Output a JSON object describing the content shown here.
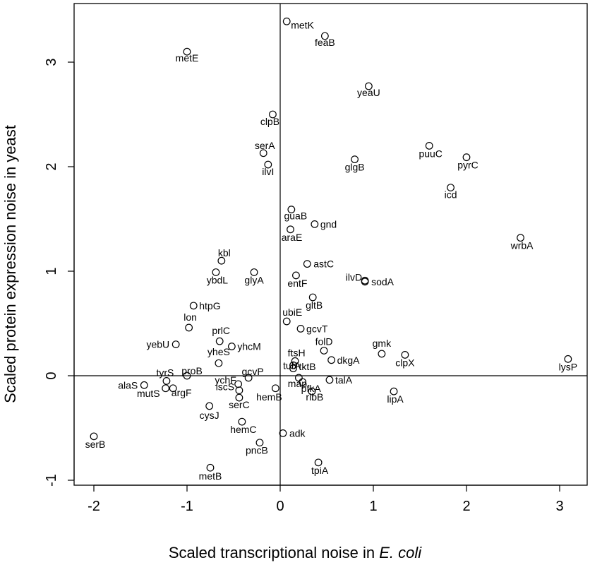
{
  "chart_data": {
    "type": "scatter",
    "xlabel": "Scaled transcriptional noise in ",
    "xlabel_italic": "E. coli",
    "ylabel": "Scaled protein expression noise in yeast",
    "xlim": [
      -2.1,
      3.15
    ],
    "ylim": [
      -1.1,
      3.5
    ],
    "x_ticks": [
      -2,
      -1,
      0,
      1,
      2,
      3
    ],
    "y_ticks": [
      -1,
      0,
      1,
      2,
      3
    ],
    "reference_lines": {
      "x": 0,
      "y": 0
    },
    "marker": "open-circle",
    "points": [
      {
        "label": "metK",
        "x": 0.07,
        "y": 3.39
      },
      {
        "label": "feaB",
        "x": 0.48,
        "y": 3.25
      },
      {
        "label": "metE",
        "x": -1.0,
        "y": 3.1
      },
      {
        "label": "yeaU",
        "x": 0.95,
        "y": 2.77
      },
      {
        "label": "clpB",
        "x": -0.08,
        "y": 2.5
      },
      {
        "label": "serA",
        "x": -0.18,
        "y": 2.13
      },
      {
        "label": "puuC",
        "x": 1.6,
        "y": 2.2
      },
      {
        "label": "pyrC",
        "x": 2.0,
        "y": 2.09
      },
      {
        "label": "glgB",
        "x": 0.8,
        "y": 2.07
      },
      {
        "label": "ilvI",
        "x": -0.13,
        "y": 2.02
      },
      {
        "label": "icd",
        "x": 1.83,
        "y": 1.8
      },
      {
        "label": "guaB",
        "x": 0.12,
        "y": 1.59
      },
      {
        "label": "gnd",
        "x": 0.37,
        "y": 1.45
      },
      {
        "label": "araE",
        "x": 0.11,
        "y": 1.4
      },
      {
        "label": "wrbA",
        "x": 2.58,
        "y": 1.32
      },
      {
        "label": "kbl",
        "x": -0.63,
        "y": 1.1
      },
      {
        "label": "astC",
        "x": 0.29,
        "y": 1.07
      },
      {
        "label": "ybdL",
        "x": -0.69,
        "y": 0.99
      },
      {
        "label": "glyA",
        "x": -0.28,
        "y": 0.99
      },
      {
        "label": "entF",
        "x": 0.17,
        "y": 0.96
      },
      {
        "label": "ilvD",
        "x": 0.91,
        "y": 0.91
      },
      {
        "label": "sodA",
        "x": 0.91,
        "y": 0.9
      },
      {
        "label": "gltB",
        "x": 0.35,
        "y": 0.75
      },
      {
        "label": "htpG",
        "x": -0.93,
        "y": 0.67
      },
      {
        "label": "ubiE",
        "x": 0.07,
        "y": 0.52
      },
      {
        "label": "lon",
        "x": -0.98,
        "y": 0.46
      },
      {
        "label": "gcvT",
        "x": 0.22,
        "y": 0.45
      },
      {
        "label": "prlC",
        "x": -0.65,
        "y": 0.33
      },
      {
        "label": "yebU",
        "x": -1.12,
        "y": 0.3
      },
      {
        "label": "yhcM",
        "x": -0.52,
        "y": 0.28
      },
      {
        "label": "folD",
        "x": 0.47,
        "y": 0.24
      },
      {
        "label": "gmk",
        "x": 1.09,
        "y": 0.21
      },
      {
        "label": "clpX",
        "x": 1.34,
        "y": 0.2
      },
      {
        "label": "lysP",
        "x": 3.09,
        "y": 0.16
      },
      {
        "label": "dkgA",
        "x": 0.55,
        "y": 0.15
      },
      {
        "label": "ftsH",
        "x": 0.16,
        "y": 0.14
      },
      {
        "label": "yheS",
        "x": -0.66,
        "y": 0.12
      },
      {
        "label": "tktB",
        "x": 0.14,
        "y": 0.1
      },
      {
        "label": "tufA",
        "x": 0.14,
        "y": 0.07
      },
      {
        "label": "proB",
        "x": -1.0,
        "y": 0.0
      },
      {
        "label": "gcvP",
        "x": -0.34,
        "y": -0.02
      },
      {
        "label": "tyrS",
        "x": -1.22,
        "y": -0.05
      },
      {
        "label": "talA",
        "x": 0.53,
        "y": -0.04
      },
      {
        "label": "map",
        "x": 0.2,
        "y": -0.02
      },
      {
        "label": "ychF",
        "x": -0.45,
        "y": -0.08
      },
      {
        "label": "alaS",
        "x": -1.46,
        "y": -0.09
      },
      {
        "label": "pfkA",
        "x": 0.24,
        "y": -0.06
      },
      {
        "label": "hemB",
        "x": -0.05,
        "y": -0.12
      },
      {
        "label": "mutS",
        "x": -1.23,
        "y": -0.12
      },
      {
        "label": "argF",
        "x": -1.15,
        "y": -0.12
      },
      {
        "label": "iscS",
        "x": -0.44,
        "y": -0.14
      },
      {
        "label": "lipA",
        "x": 1.22,
        "y": -0.15
      },
      {
        "label": "ribB",
        "x": 0.34,
        "y": -0.15
      },
      {
        "label": "serC",
        "x": -0.44,
        "y": -0.21
      },
      {
        "label": "cysJ",
        "x": -0.76,
        "y": -0.29
      },
      {
        "label": "hemC",
        "x": -0.41,
        "y": -0.44
      },
      {
        "label": "adk",
        "x": 0.03,
        "y": -0.55
      },
      {
        "label": "serB",
        "x": -2.0,
        "y": -0.58
      },
      {
        "label": "pncB",
        "x": -0.22,
        "y": -0.64
      },
      {
        "label": "tpiA",
        "x": 0.41,
        "y": -0.83
      },
      {
        "label": "metB",
        "x": -0.75,
        "y": -0.88
      }
    ]
  }
}
